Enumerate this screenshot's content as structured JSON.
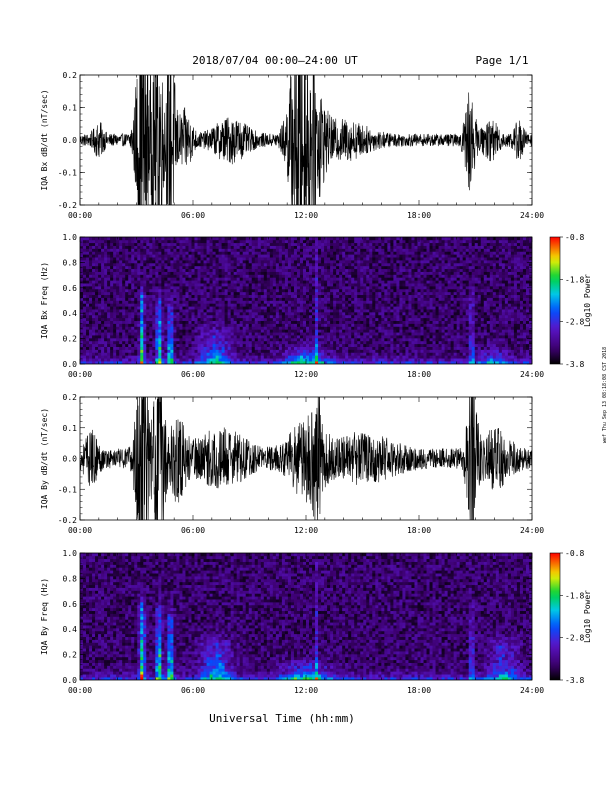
{
  "header": {
    "title": "2018/07/04  00:00–24:00 UT",
    "page": "Page 1/1"
  },
  "footer": {
    "xlabel": "Universal Time (hh:mm)",
    "side_note": "wef Thu Sep 13 08:18:08 CST 2018"
  },
  "chart_data": [
    {
      "type": "line",
      "id": "bx_dbdt",
      "ylabel": "IQA Bx dB/dt (nT/sec)",
      "xlim": [
        0,
        24
      ],
      "ylim": [
        -0.2,
        0.2
      ],
      "x_ticks": [
        "00:00",
        "06:00",
        "12:00",
        "18:00",
        "24:00"
      ],
      "y_ticks": [
        "-0.2",
        "-0.1",
        "0.0",
        "0.1",
        "0.2"
      ],
      "baseline_amplitude": 0.012,
      "activity": [
        {
          "t": 1.0,
          "w": 0.3,
          "amp": 0.025
        },
        {
          "t": 3.3,
          "w": 0.35,
          "amp": 0.25
        },
        {
          "t": 3.9,
          "w": 0.2,
          "amp": 0.12
        },
        {
          "t": 4.2,
          "w": 0.2,
          "amp": 0.2
        },
        {
          "t": 4.8,
          "w": 0.3,
          "amp": 0.18
        },
        {
          "t": 5.6,
          "w": 0.4,
          "amp": 0.05
        },
        {
          "t": 8.0,
          "w": 1.0,
          "amp": 0.035
        },
        {
          "t": 11.7,
          "w": 0.6,
          "amp": 0.25
        },
        {
          "t": 12.6,
          "w": 0.5,
          "amp": 0.08
        },
        {
          "t": 14.0,
          "w": 1.5,
          "amp": 0.03
        },
        {
          "t": 20.7,
          "w": 0.3,
          "amp": 0.09
        },
        {
          "t": 21.8,
          "w": 0.5,
          "amp": 0.03
        },
        {
          "t": 23.3,
          "w": 0.3,
          "amp": 0.03
        }
      ]
    },
    {
      "type": "heatmap",
      "id": "bx_spec",
      "ylabel": "IQA Bx Freq (Hz)",
      "colorbar_label": "Log10 Power",
      "colorbar_ticks": [
        "-0.8",
        "-1.8",
        "-2.8",
        "-3.8"
      ],
      "zlim": [
        -3.8,
        -0.8
      ],
      "xlim": [
        0,
        24
      ],
      "ylim": [
        0,
        1.0
      ],
      "x_ticks": [
        "00:00",
        "06:00",
        "12:00",
        "18:00",
        "24:00"
      ],
      "y_ticks": [
        "0.0",
        "0.2",
        "0.4",
        "0.6",
        "0.8",
        "1.0"
      ],
      "activity": [
        {
          "t": 3.3,
          "w": 0.12,
          "amp": 2.2,
          "fmax": 0.55
        },
        {
          "t": 4.2,
          "w": 0.15,
          "amp": 2.0,
          "fmax": 0.5
        },
        {
          "t": 4.8,
          "w": 0.15,
          "amp": 1.8,
          "fmax": 0.45
        },
        {
          "t": 7.2,
          "w": 0.8,
          "amp": 1.2,
          "fmax": 0.25
        },
        {
          "t": 12.0,
          "w": 1.0,
          "amp": 1.4,
          "fmax": 0.12
        },
        {
          "t": 12.6,
          "w": 0.05,
          "amp": 1.5,
          "fmax": 0.9
        },
        {
          "t": 20.8,
          "w": 0.1,
          "amp": 1.3,
          "fmax": 0.55
        },
        {
          "t": 22.0,
          "w": 0.8,
          "amp": 0.8,
          "fmax": 0.1
        }
      ]
    },
    {
      "type": "line",
      "id": "by_dbdt",
      "ylabel": "IQA By dB/dt (nT/sec)",
      "xlim": [
        0,
        24
      ],
      "ylim": [
        -0.2,
        0.2
      ],
      "x_ticks": [
        "00:00",
        "06:00",
        "12:00",
        "18:00",
        "24:00"
      ],
      "y_ticks": [
        "-0.2",
        "-0.1",
        "0.0",
        "0.1",
        "0.2"
      ],
      "baseline_amplitude": 0.02,
      "activity": [
        {
          "t": 0.6,
          "w": 0.4,
          "amp": 0.04
        },
        {
          "t": 3.3,
          "w": 0.35,
          "amp": 0.25
        },
        {
          "t": 4.2,
          "w": 0.3,
          "amp": 0.22
        },
        {
          "t": 5.2,
          "w": 0.5,
          "amp": 0.07
        },
        {
          "t": 7.5,
          "w": 1.5,
          "amp": 0.045
        },
        {
          "t": 12.0,
          "w": 1.0,
          "amp": 0.07
        },
        {
          "t": 12.6,
          "w": 0.2,
          "amp": 0.1
        },
        {
          "t": 15.0,
          "w": 2.0,
          "amp": 0.035
        },
        {
          "t": 20.8,
          "w": 0.3,
          "amp": 0.13
        },
        {
          "t": 22.0,
          "w": 1.0,
          "amp": 0.045
        }
      ]
    },
    {
      "type": "heatmap",
      "id": "by_spec",
      "ylabel": "IQA By Freq (Hz)",
      "colorbar_label": "Log10 Power",
      "colorbar_ticks": [
        "-0.8",
        "-1.8",
        "-2.8",
        "-3.8"
      ],
      "zlim": [
        -3.8,
        -0.8
      ],
      "xlim": [
        0,
        24
      ],
      "ylim": [
        0,
        1.0
      ],
      "x_ticks": [
        "00:00",
        "06:00",
        "12:00",
        "18:00",
        "24:00"
      ],
      "y_ticks": [
        "0.0",
        "0.2",
        "0.4",
        "0.6",
        "0.8",
        "1.0"
      ],
      "activity": [
        {
          "t": 3.3,
          "w": 0.15,
          "amp": 2.3,
          "fmax": 0.6
        },
        {
          "t": 4.2,
          "w": 0.15,
          "amp": 2.1,
          "fmax": 0.55
        },
        {
          "t": 4.8,
          "w": 0.15,
          "amp": 1.9,
          "fmax": 0.5
        },
        {
          "t": 7.2,
          "w": 0.8,
          "amp": 1.3,
          "fmax": 0.3
        },
        {
          "t": 12.0,
          "w": 1.2,
          "amp": 1.3,
          "fmax": 0.12
        },
        {
          "t": 12.6,
          "w": 0.05,
          "amp": 1.4,
          "fmax": 0.9
        },
        {
          "t": 20.8,
          "w": 0.1,
          "amp": 1.4,
          "fmax": 0.55
        },
        {
          "t": 22.5,
          "w": 0.8,
          "amp": 1.0,
          "fmax": 0.3
        }
      ]
    }
  ]
}
